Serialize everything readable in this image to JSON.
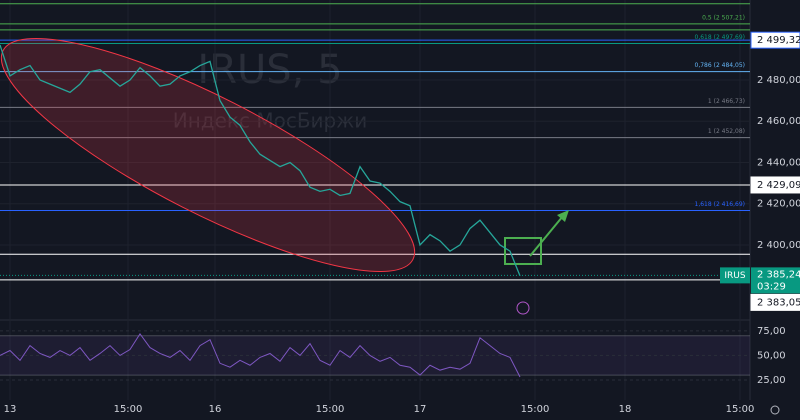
{
  "chart_data": {
    "type": "line",
    "watermark": "IRUS, 5",
    "watermark_subtitle": "Индекс МосБиржи",
    "x": [
      0,
      1,
      2,
      3,
      4,
      5,
      6,
      7,
      8,
      9,
      10,
      11,
      12,
      13,
      14,
      15,
      16,
      17,
      18,
      19,
      20,
      21,
      22,
      23,
      24,
      25,
      26,
      27,
      28,
      29,
      30,
      31,
      32,
      33,
      34,
      35,
      36,
      37,
      38,
      39,
      40,
      41,
      42,
      43,
      44,
      45,
      46,
      47,
      48,
      49,
      50,
      51,
      52
    ],
    "xlim": [
      0,
      75
    ],
    "xticks": [
      {
        "value": 1,
        "label": "13"
      },
      {
        "value": 12.8,
        "label": "15:00"
      },
      {
        "value": 21.5,
        "label": "16"
      },
      {
        "value": 33,
        "label": "15:00"
      },
      {
        "value": 42,
        "label": "17"
      },
      {
        "value": 53.5,
        "label": "15:00"
      },
      {
        "value": 62.5,
        "label": "18"
      },
      {
        "value": 74,
        "label": "15:00"
      }
    ],
    "series": [
      {
        "name": "IRUS",
        "color": "#26a69a",
        "values": [
          2497,
          2482,
          2485,
          2487,
          2480,
          2478,
          2476,
          2474,
          2478,
          2484,
          2485,
          2481,
          2477,
          2480,
          2486,
          2482,
          2477,
          2478,
          2482,
          2484,
          2487,
          2489,
          2470,
          2462,
          2458,
          2450,
          2444,
          2441,
          2438,
          2440,
          2436,
          2428,
          2426,
          2427,
          2424,
          2425,
          2438,
          2431,
          2430,
          2426,
          2421,
          2419,
          2400,
          2405,
          2402,
          2397,
          2400,
          2408,
          2412,
          2406,
          2400,
          2397,
          2385
        ]
      }
    ],
    "ylim": [
      2363.6,
      2518.8
    ],
    "yticks": [
      {
        "value": 2400,
        "label": "2 400,00"
      },
      {
        "value": 2420,
        "label": "2 420,00"
      },
      {
        "value": 2440,
        "label": "2 440,00"
      },
      {
        "value": 2460,
        "label": "2 460,00"
      },
      {
        "value": 2480,
        "label": "2 480,00"
      }
    ],
    "fib_levels": [
      {
        "value": 2507.21,
        "label": "0,5 (2 507,21)",
        "color": "#4caf50"
      },
      {
        "value": 2497.69,
        "label": "0,618 (2 497,69)",
        "color": "#089981"
      },
      {
        "value": 2484.05,
        "label": "0,786 (2 484,05)",
        "color": "#64b5f6"
      },
      {
        "value": 2466.73,
        "label": "1 (2 466,73)",
        "color": "#787b86"
      },
      {
        "value": 2452.08,
        "label": "1 (2 452,08)",
        "color": "#787b86"
      },
      {
        "value": 2416.69,
        "label": "1,618 (2 416,69)",
        "color": "#2962ff"
      }
    ],
    "horizontal_lines": [
      2517,
      2504.3,
      2395.5
    ],
    "price_labels": [
      {
        "value": 2499.32,
        "label": "2 499,32",
        "color": "#2962ff"
      },
      {
        "value": 2429.09,
        "label": "2 429,09",
        "color": "#ffffff"
      },
      {
        "value": 2383.05,
        "label": "2 383,05",
        "color": "#ffffff"
      }
    ],
    "last_price": {
      "name": "IRUS",
      "value": 2385.24,
      "label": "2 385,24",
      "countdown": "03:29",
      "color": "#089981"
    },
    "rsi": {
      "color": "#7e57c2",
      "values": [
        50,
        55,
        45,
        60,
        52,
        48,
        55,
        50,
        58,
        45,
        52,
        60,
        50,
        56,
        72,
        58,
        52,
        48,
        55,
        45,
        60,
        66,
        42,
        38,
        45,
        40,
        48,
        52,
        44,
        58,
        50,
        62,
        45,
        40,
        55,
        48,
        60,
        50,
        44,
        48,
        40,
        38,
        30,
        40,
        35,
        38,
        36,
        42,
        68,
        60,
        52,
        48,
        28
      ],
      "ylim": [
        4.6,
        86.1
      ],
      "yticks": [
        {
          "value": 25,
          "label": "25,00"
        },
        {
          "value": 50,
          "label": "50,00"
        },
        {
          "value": 75,
          "label": "75,00"
        }
      ],
      "band": [
        30,
        70
      ]
    }
  }
}
